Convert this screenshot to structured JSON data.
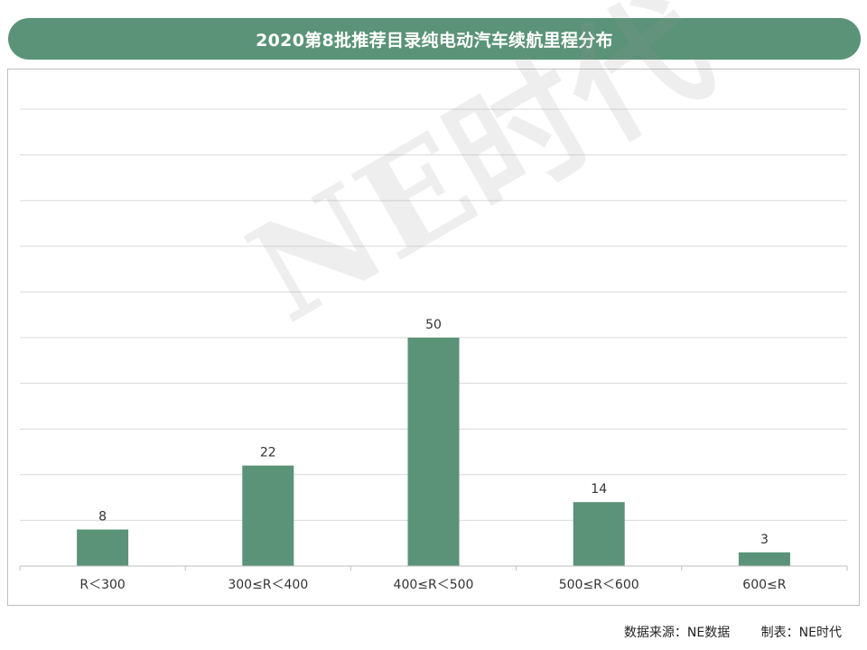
{
  "chart_data": {
    "type": "bar",
    "title": "2020第8批推荐目录纯电动汽车续航里程分布",
    "categories": [
      "R＜300",
      "300≤R＜400",
      "400≤R＜500",
      "500≤R＜600",
      "600≤R"
    ],
    "values": [
      8,
      22,
      50,
      14,
      3
    ],
    "xlabel": "",
    "ylabel": "",
    "ylim": [
      0,
      100
    ],
    "grid": true,
    "legend": "none",
    "bar_color": "#5a9378",
    "title_bg_color": "#5a9378"
  },
  "watermark": "NE时代",
  "footer": {
    "source": "数据来源：NE数据",
    "maker": "制表：NE时代"
  }
}
